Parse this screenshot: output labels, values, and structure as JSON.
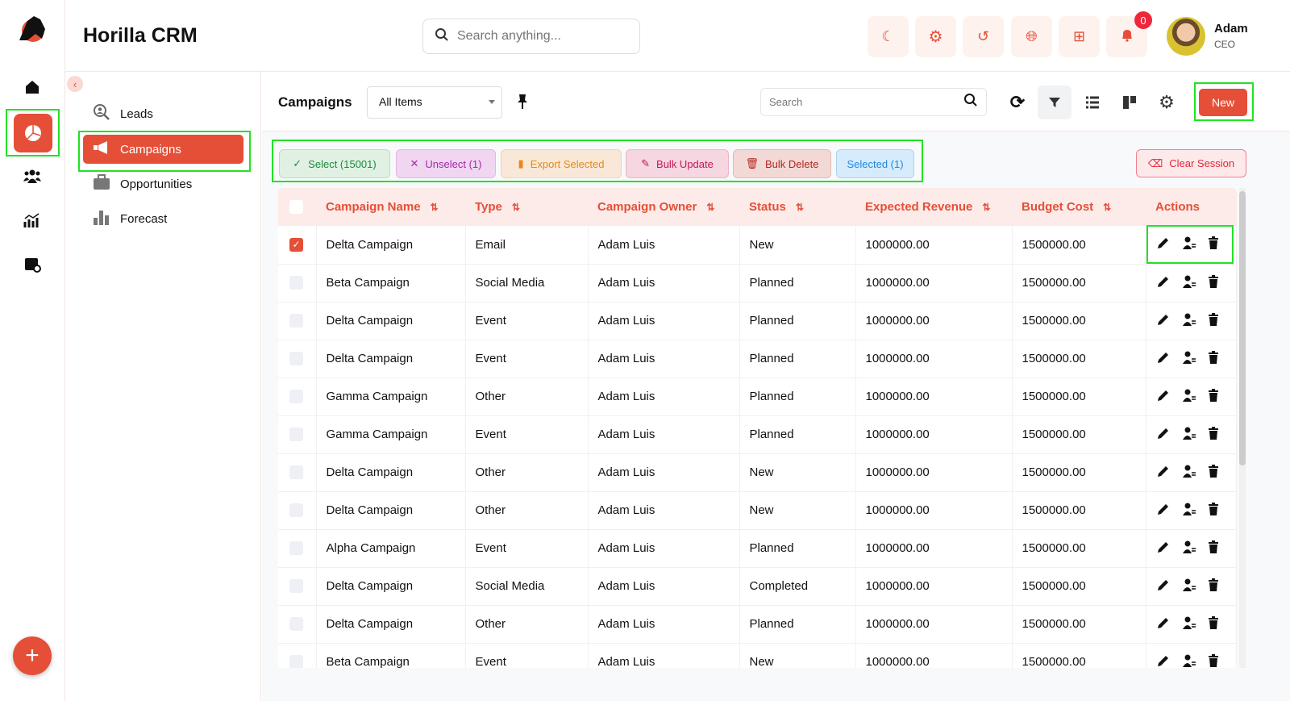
{
  "app": {
    "title": "Horilla CRM"
  },
  "search": {
    "placeholder": "Search anything..."
  },
  "notifications": {
    "count": "0"
  },
  "user": {
    "name": "Adam",
    "role": "CEO"
  },
  "sidebar": {
    "items": [
      {
        "label": "Leads"
      },
      {
        "label": "Campaigns",
        "active": true
      },
      {
        "label": "Opportunities"
      },
      {
        "label": "Forecast"
      }
    ]
  },
  "main": {
    "title": "Campaigns",
    "view_select": "All Items",
    "search_placeholder": "Search",
    "new_label": "New",
    "bulk": {
      "select": "Select (15001)",
      "unselect": "Unselect (1)",
      "export": "Export Selected",
      "update": "Bulk Update",
      "delete": "Bulk Delete",
      "selected": "Selected (1)",
      "clear": "Clear Session"
    },
    "columns": [
      "Campaign Name",
      "Type",
      "Campaign Owner",
      "Status",
      "Expected Revenue",
      "Budget Cost",
      "Actions"
    ],
    "rows": [
      {
        "checked": true,
        "name": "Delta Campaign",
        "type": "Email",
        "owner": "Adam Luis",
        "status": "New",
        "revenue": "1000000.00",
        "budget": "1500000.00"
      },
      {
        "name": "Beta Campaign",
        "type": "Social Media",
        "owner": "Adam Luis",
        "status": "Planned",
        "revenue": "1000000.00",
        "budget": "1500000.00"
      },
      {
        "name": "Delta Campaign",
        "type": "Event",
        "owner": "Adam Luis",
        "status": "Planned",
        "revenue": "1000000.00",
        "budget": "1500000.00"
      },
      {
        "name": "Delta Campaign",
        "type": "Event",
        "owner": "Adam Luis",
        "status": "Planned",
        "revenue": "1000000.00",
        "budget": "1500000.00"
      },
      {
        "name": "Gamma Campaign",
        "type": "Other",
        "owner": "Adam Luis",
        "status": "Planned",
        "revenue": "1000000.00",
        "budget": "1500000.00"
      },
      {
        "name": "Gamma Campaign",
        "type": "Event",
        "owner": "Adam Luis",
        "status": "Planned",
        "revenue": "1000000.00",
        "budget": "1500000.00"
      },
      {
        "name": "Delta Campaign",
        "type": "Other",
        "owner": "Adam Luis",
        "status": "New",
        "revenue": "1000000.00",
        "budget": "1500000.00"
      },
      {
        "name": "Delta Campaign",
        "type": "Other",
        "owner": "Adam Luis",
        "status": "New",
        "revenue": "1000000.00",
        "budget": "1500000.00"
      },
      {
        "name": "Alpha Campaign",
        "type": "Event",
        "owner": "Adam Luis",
        "status": "Planned",
        "revenue": "1000000.00",
        "budget": "1500000.00"
      },
      {
        "name": "Delta Campaign",
        "type": "Social Media",
        "owner": "Adam Luis",
        "status": "Completed",
        "revenue": "1000000.00",
        "budget": "1500000.00"
      },
      {
        "name": "Delta Campaign",
        "type": "Other",
        "owner": "Adam Luis",
        "status": "Planned",
        "revenue": "1000000.00",
        "budget": "1500000.00"
      },
      {
        "name": "Beta Campaign",
        "type": "Event",
        "owner": "Adam Luis",
        "status": "New",
        "revenue": "1000000.00",
        "budget": "1500000.00"
      }
    ]
  },
  "colors": {
    "accent": "#e54f38",
    "highlight": "#22e222"
  }
}
